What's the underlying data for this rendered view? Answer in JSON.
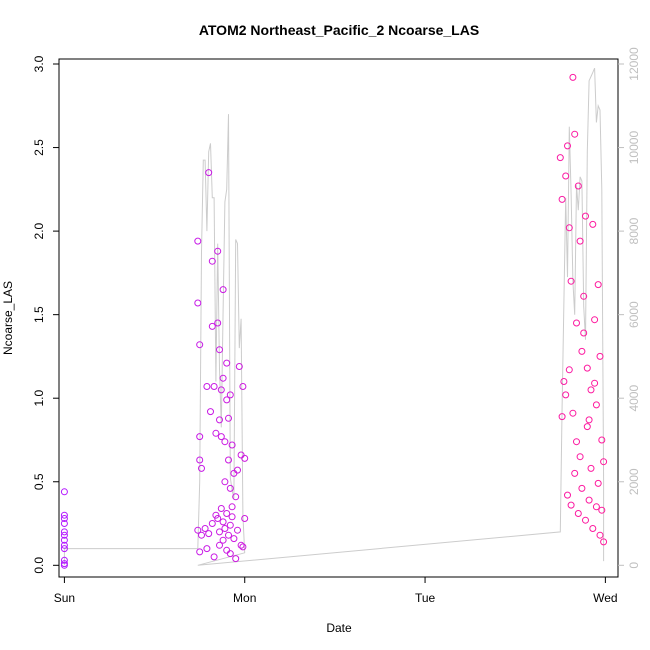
{
  "chart_data": {
    "type": "scatter",
    "title": "ATOM2 Northeast_Pacific_2 Ncoarse_LAS",
    "xlabel": "Date",
    "ylabel": "Ncoarse_LAS",
    "x_ticks": [
      "Sun",
      "Mon",
      "Tue",
      "Wed"
    ],
    "xlim": [
      -0.03,
      3.07
    ],
    "ylim": [
      -0.07,
      3.03
    ],
    "y_ticks": [
      0.0,
      0.5,
      1.0,
      1.5,
      2.0,
      2.5,
      3.0
    ],
    "y_tick_labels": [
      "0.0",
      "0.5",
      "1.0",
      "1.5",
      "2.0",
      "2.5",
      "3.0"
    ],
    "y2lim": [
      -280,
      12120
    ],
    "y2_ticks": [
      0,
      2000,
      4000,
      6000,
      8000,
      10000,
      12000
    ],
    "y2_tick_labels": [
      "0",
      "2000",
      "4000",
      "6000",
      "8000",
      "10000",
      "12000"
    ],
    "grid": false,
    "colors": {
      "point_start": "#b41aff",
      "point_end": "#ff1a9c",
      "altitude_line": "#cccccc",
      "right_axis": "#bfbfbf"
    },
    "series": [
      {
        "type": "points",
        "cluster": "sun",
        "x": [
          0.0,
          0.0,
          0.0,
          0.0,
          0.0,
          0.0,
          0.0,
          0.0,
          0.0,
          0.0,
          0.0,
          0.0
        ],
        "y": [
          0.44,
          0.3,
          0.28,
          0.25,
          0.2,
          0.18,
          0.15,
          0.12,
          0.1,
          0.03,
          0.01,
          0.0
        ]
      },
      {
        "type": "points",
        "cluster": "mon",
        "x": [
          0.74,
          0.74,
          0.75,
          0.75,
          0.75,
          0.76,
          0.79,
          0.8,
          0.81,
          0.82,
          0.82,
          0.83,
          0.84,
          0.85,
          0.85,
          0.86,
          0.86,
          0.87,
          0.87,
          0.88,
          0.88,
          0.89,
          0.89,
          0.9,
          0.9,
          0.91,
          0.91,
          0.92,
          0.92,
          0.93,
          0.93,
          0.94,
          0.95,
          0.96,
          0.97,
          0.98,
          0.99,
          1.0,
          0.74,
          0.76,
          0.78,
          0.8,
          0.82,
          0.84,
          0.85,
          0.86,
          0.87,
          0.88,
          0.89,
          0.9,
          0.91,
          0.92,
          0.93,
          0.94,
          0.96,
          0.98,
          1.0,
          0.75,
          0.79,
          0.83,
          0.86,
          0.88,
          0.9,
          0.92,
          0.95,
          0.99
        ],
        "y": [
          1.94,
          1.57,
          1.32,
          0.77,
          0.63,
          0.58,
          1.07,
          2.35,
          0.92,
          1.82,
          1.43,
          1.07,
          0.79,
          1.45,
          1.88,
          1.29,
          0.87,
          1.05,
          0.77,
          1.65,
          1.12,
          0.74,
          0.5,
          1.21,
          0.99,
          0.63,
          0.88,
          1.02,
          0.46,
          0.72,
          0.35,
          0.55,
          0.41,
          0.57,
          1.19,
          0.66,
          1.07,
          0.64,
          0.21,
          0.18,
          0.22,
          0.19,
          0.25,
          0.3,
          0.28,
          0.2,
          0.34,
          0.26,
          0.22,
          0.31,
          0.18,
          0.24,
          0.29,
          0.16,
          0.21,
          0.12,
          0.28,
          0.08,
          0.1,
          0.05,
          0.12,
          0.15,
          0.09,
          0.07,
          0.04,
          0.11
        ]
      },
      {
        "type": "points",
        "cluster": "wed",
        "x": [
          2.75,
          2.76,
          2.77,
          2.78,
          2.79,
          2.8,
          2.81,
          2.82,
          2.83,
          2.84,
          2.85,
          2.86,
          2.87,
          2.88,
          2.89,
          2.9,
          2.91,
          2.92,
          2.93,
          2.94,
          2.95,
          2.96,
          2.97,
          2.98,
          2.99,
          2.76,
          2.78,
          2.8,
          2.82,
          2.84,
          2.86,
          2.88,
          2.9,
          2.92,
          2.94,
          2.96,
          2.98,
          2.79,
          2.81,
          2.83,
          2.85,
          2.87,
          2.89,
          2.91,
          2.93,
          2.95,
          2.97,
          2.99
        ],
        "y": [
          2.44,
          2.19,
          1.1,
          2.33,
          2.51,
          2.02,
          1.7,
          2.92,
          2.58,
          1.45,
          2.27,
          1.94,
          1.28,
          1.61,
          2.09,
          1.18,
          0.87,
          1.05,
          2.04,
          1.47,
          0.96,
          1.68,
          1.25,
          0.75,
          0.62,
          0.89,
          1.02,
          1.17,
          0.91,
          0.74,
          0.65,
          1.39,
          0.83,
          0.58,
          1.09,
          0.49,
          0.33,
          0.42,
          0.36,
          0.55,
          0.31,
          0.46,
          0.27,
          0.39,
          0.22,
          0.35,
          0.18,
          0.14
        ]
      }
    ],
    "altitude_line": {
      "x": [
        0.0,
        0.0,
        0.74,
        0.75,
        0.76,
        0.77,
        0.78,
        0.79,
        0.8,
        0.81,
        0.82,
        0.83,
        0.84,
        0.85,
        0.86,
        0.87,
        0.88,
        0.89,
        0.9,
        0.91,
        0.92,
        0.93,
        0.94,
        0.95,
        0.96,
        0.97,
        0.98,
        0.99,
        1.0,
        0.74,
        2.75,
        2.76,
        2.77,
        2.78,
        2.79,
        2.8,
        2.81,
        2.82,
        2.83,
        2.84,
        2.85,
        2.86,
        2.87,
        2.88,
        2.89,
        2.9,
        2.91,
        2.92,
        2.93,
        2.94,
        2.95,
        2.96,
        2.97,
        2.98,
        2.99,
        2.99
      ],
      "y": [
        0,
        400,
        400,
        2000,
        7500,
        9700,
        9700,
        8000,
        9900,
        10100,
        8800,
        8800,
        4400,
        7700,
        4700,
        3300,
        6100,
        8700,
        9000,
        10800,
        2100,
        1800,
        1600,
        7800,
        7700,
        5200,
        5900,
        1200,
        300,
        0,
        800,
        3800,
        6300,
        8800,
        6900,
        10500,
        8900,
        6800,
        6000,
        9100,
        8500,
        9300,
        9200,
        6200,
        5400,
        9900,
        11600,
        11700,
        11800,
        11900,
        10600,
        11000,
        10900,
        9000,
        2000,
        100
      ]
    }
  }
}
